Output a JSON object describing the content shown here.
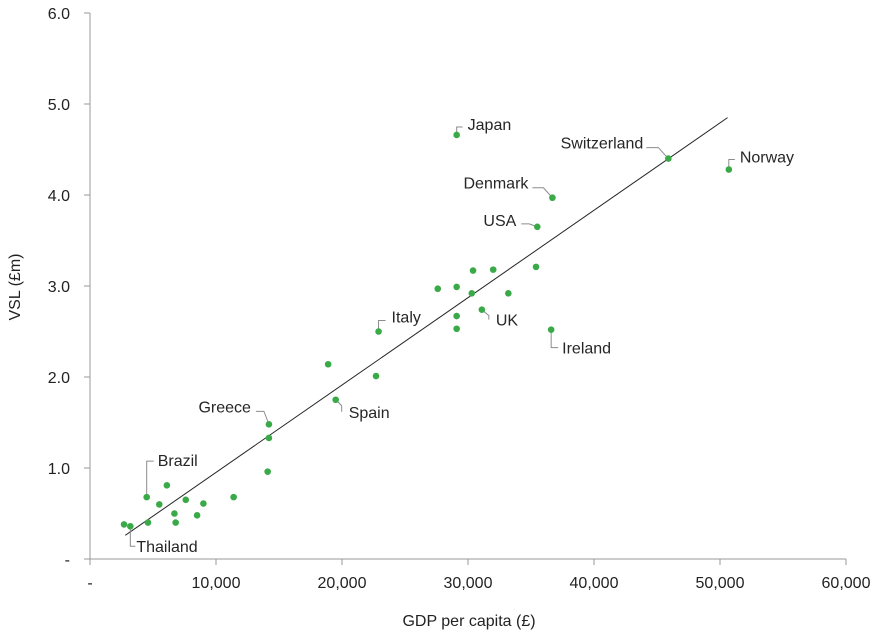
{
  "chart_data": {
    "type": "scatter",
    "title": "",
    "xlabel": "GDP per capita (£)",
    "ylabel": "VSL (£m)",
    "xlim": [
      0,
      60000
    ],
    "ylim": [
      0,
      6.0
    ],
    "x_ticks": [
      0,
      10000,
      20000,
      30000,
      40000,
      50000,
      60000
    ],
    "x_tick_labels": [
      "-",
      "10,000",
      "20,000",
      "30,000",
      "40,000",
      "50,000",
      "60,000"
    ],
    "y_ticks": [
      0,
      1,
      2,
      3,
      4,
      5,
      6
    ],
    "y_tick_labels": [
      "-",
      "1.0",
      "2.0",
      "3.0",
      "4.0",
      "5.0",
      "6.0"
    ],
    "grid": false,
    "legend": "none",
    "point_color": "#3aaa48",
    "trendline_color": "#262626",
    "trendline": {
      "x": [
        2800,
        50600
      ],
      "y": [
        0.26,
        4.85
      ]
    },
    "points": [
      {
        "x": 2700,
        "y": 0.38,
        "label": ""
      },
      {
        "x": 3200,
        "y": 0.36,
        "label": "Thailand"
      },
      {
        "x": 4500,
        "y": 0.68,
        "label": "Brazil"
      },
      {
        "x": 4600,
        "y": 0.4,
        "label": ""
      },
      {
        "x": 5500,
        "y": 0.6,
        "label": ""
      },
      {
        "x": 6100,
        "y": 0.81,
        "label": ""
      },
      {
        "x": 6700,
        "y": 0.5,
        "label": ""
      },
      {
        "x": 6800,
        "y": 0.4,
        "label": ""
      },
      {
        "x": 7600,
        "y": 0.65,
        "label": ""
      },
      {
        "x": 8500,
        "y": 0.48,
        "label": ""
      },
      {
        "x": 9000,
        "y": 0.61,
        "label": ""
      },
      {
        "x": 11400,
        "y": 0.68,
        "label": ""
      },
      {
        "x": 14100,
        "y": 0.96,
        "label": ""
      },
      {
        "x": 14200,
        "y": 1.33,
        "label": ""
      },
      {
        "x": 14200,
        "y": 1.48,
        "label": "Greece"
      },
      {
        "x": 18900,
        "y": 2.14,
        "label": ""
      },
      {
        "x": 19500,
        "y": 1.75,
        "label": "Spain"
      },
      {
        "x": 22700,
        "y": 2.01,
        "label": ""
      },
      {
        "x": 22900,
        "y": 2.5,
        "label": "Italy"
      },
      {
        "x": 27600,
        "y": 2.97,
        "label": ""
      },
      {
        "x": 29100,
        "y": 2.99,
        "label": ""
      },
      {
        "x": 29100,
        "y": 2.67,
        "label": ""
      },
      {
        "x": 29100,
        "y": 2.53,
        "label": ""
      },
      {
        "x": 29100,
        "y": 4.66,
        "label": "Japan"
      },
      {
        "x": 30300,
        "y": 2.92,
        "label": ""
      },
      {
        "x": 30400,
        "y": 3.17,
        "label": ""
      },
      {
        "x": 31100,
        "y": 2.74,
        "label": "UK"
      },
      {
        "x": 32000,
        "y": 3.18,
        "label": ""
      },
      {
        "x": 33200,
        "y": 2.92,
        "label": ""
      },
      {
        "x": 35400,
        "y": 3.21,
        "label": ""
      },
      {
        "x": 35500,
        "y": 3.65,
        "label": "USA"
      },
      {
        "x": 36600,
        "y": 2.52,
        "label": "Ireland"
      },
      {
        "x": 36700,
        "y": 3.97,
        "label": "Denmark"
      },
      {
        "x": 45900,
        "y": 4.4,
        "label": "Switzerland"
      },
      {
        "x": 50700,
        "y": 4.28,
        "label": "Norway"
      }
    ]
  }
}
